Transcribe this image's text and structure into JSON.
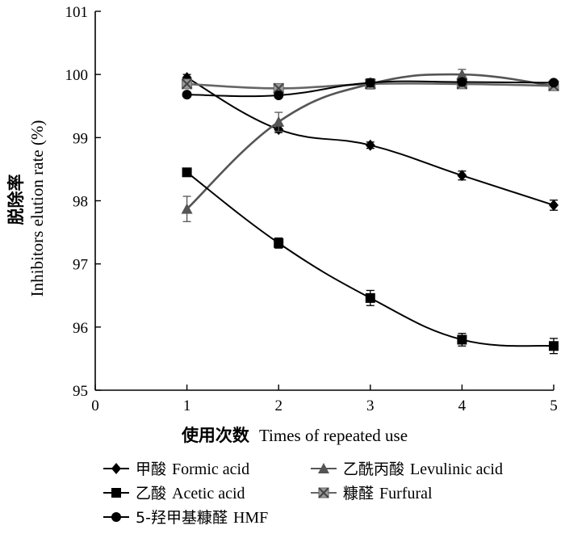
{
  "chart_data": {
    "type": "line",
    "title": "",
    "xlabel_cn": "使用次数",
    "xlabel_en": "Times of repeated use",
    "ylabel_cn": "脱除率",
    "ylabel_en": "Inhibitors elution rate (%)",
    "xlim": [
      0,
      5
    ],
    "ylim": [
      95,
      101
    ],
    "x_ticks": [
      0,
      1,
      2,
      3,
      4,
      5
    ],
    "y_ticks": [
      95,
      96,
      97,
      98,
      99,
      100,
      101
    ],
    "x": [
      1,
      2,
      3,
      4,
      5
    ],
    "grid": false,
    "legend_position": "bottom",
    "series": [
      {
        "name_cn": "甲酸",
        "name_en": "Formic acid",
        "marker": "diamond",
        "color": "#000000",
        "values": [
          99.95,
          99.13,
          98.88,
          98.4,
          97.93
        ],
        "errors": [
          0.05,
          0.05,
          0.05,
          0.07,
          0.08
        ]
      },
      {
        "name_cn": "乙酰丙酸",
        "name_en": "Levulinic acid",
        "marker": "triangle",
        "color": "#555555",
        "values": [
          97.87,
          99.25,
          99.85,
          100.0,
          99.82
        ],
        "errors": [
          0.2,
          0.15,
          0.08,
          0.08,
          0.05
        ]
      },
      {
        "name_cn": "乙酸",
        "name_en": "Acetic acid",
        "marker": "square",
        "color": "#000000",
        "values": [
          98.45,
          97.33,
          96.46,
          95.8,
          95.7
        ],
        "errors": [
          0.05,
          0.08,
          0.12,
          0.1,
          0.12
        ]
      },
      {
        "name_cn": "糠醛",
        "name_en": "Furfural",
        "marker": "x-square",
        "color": "#666666",
        "values": [
          99.85,
          99.78,
          99.85,
          99.85,
          99.82
        ],
        "errors": [
          0.05,
          0.05,
          0.05,
          0.05,
          0.04
        ]
      },
      {
        "name_cn": "5-羟甲基糠醛",
        "name_en": "HMF",
        "marker": "circle",
        "color": "#000000",
        "values": [
          99.68,
          99.67,
          99.87,
          99.88,
          99.87
        ],
        "errors": [
          0.03,
          0.03,
          0.06,
          0.05,
          0.03
        ]
      }
    ]
  }
}
